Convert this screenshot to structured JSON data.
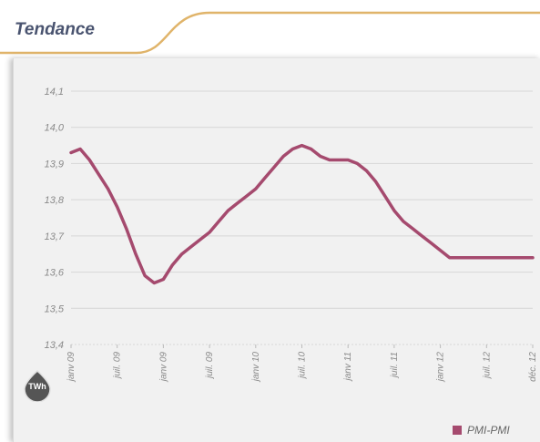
{
  "header": {
    "title": "Tendance"
  },
  "unit_badge": {
    "label": "TWh"
  },
  "legend": {
    "label": "PMI-PMI"
  },
  "colors": {
    "line": "#a54a6e",
    "accent_wave": "#e0b46a",
    "grid": "#d6d6d6",
    "text": "#8a8a8a"
  },
  "chart_data": {
    "type": "line",
    "title": "Tendance",
    "ylabel": "TWh",
    "xlabel": "",
    "ylim": [
      13.4,
      14.1
    ],
    "yticks": [
      13.4,
      13.5,
      13.6,
      13.7,
      13.8,
      13.9,
      14.0,
      14.1
    ],
    "ytick_labels": [
      "13,4",
      "13,5",
      "13,6",
      "13,7",
      "13,8",
      "13,9",
      "14,0",
      "14,1"
    ],
    "xticks": [
      "janv 09",
      "juil. 09",
      "janv 09",
      "juil. 09",
      "janv 10",
      "juil. 10",
      "janv 11",
      "juil. 11",
      "janv 12",
      "juil. 12",
      "déc. 12"
    ],
    "grid": true,
    "legend_position": "bottom-right",
    "series": [
      {
        "name": "PMI-PMI",
        "x": [
          0,
          0.2,
          0.4,
          0.6,
          0.8,
          1.0,
          1.2,
          1.4,
          1.6,
          1.8,
          2.0,
          2.2,
          2.4,
          2.6,
          2.8,
          3.0,
          3.2,
          3.4,
          3.6,
          3.8,
          4.0,
          4.2,
          4.4,
          4.6,
          4.8,
          5.0,
          5.2,
          5.4,
          5.6,
          5.8,
          6.0,
          6.2,
          6.4,
          6.6,
          6.8,
          7.0,
          7.2,
          7.4,
          7.6,
          7.8,
          8.0,
          8.2,
          8.4,
          8.6,
          8.8,
          9.0,
          9.2,
          9.4,
          9.6,
          9.8,
          10.0
        ],
        "y": [
          13.93,
          13.94,
          13.91,
          13.87,
          13.83,
          13.78,
          13.72,
          13.65,
          13.59,
          13.57,
          13.58,
          13.62,
          13.65,
          13.67,
          13.69,
          13.71,
          13.74,
          13.77,
          13.79,
          13.81,
          13.83,
          13.86,
          13.89,
          13.92,
          13.94,
          13.95,
          13.94,
          13.92,
          13.91,
          13.91,
          13.91,
          13.9,
          13.88,
          13.85,
          13.81,
          13.77,
          13.74,
          13.72,
          13.7,
          13.68,
          13.66,
          13.64,
          13.64,
          13.64,
          13.64,
          13.64,
          13.64,
          13.64,
          13.64,
          13.64,
          13.64
        ]
      }
    ]
  }
}
